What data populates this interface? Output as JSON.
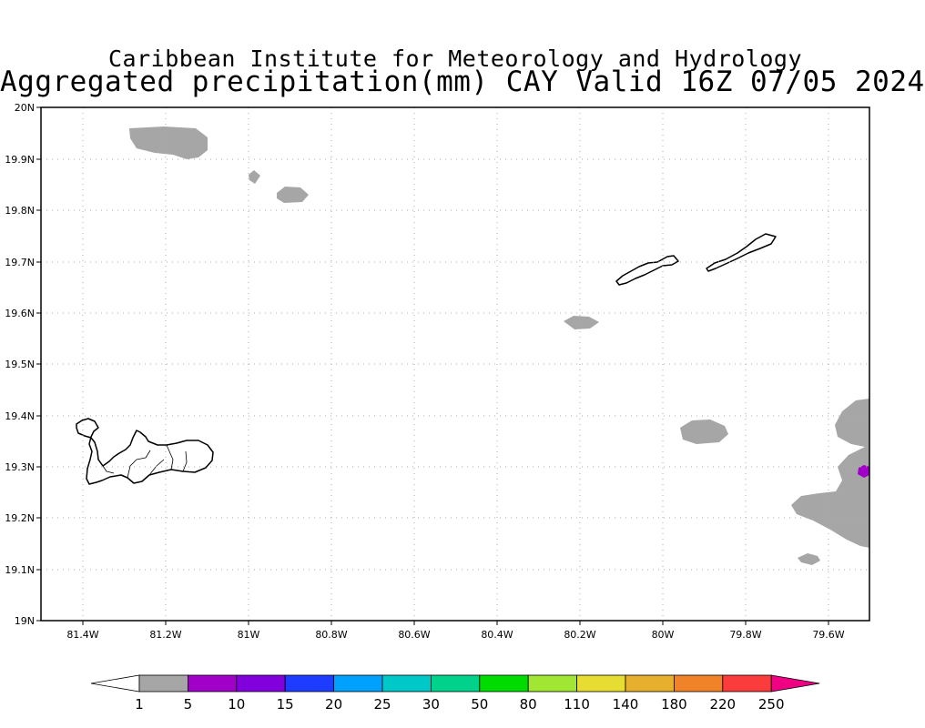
{
  "title": {
    "line1": "Caribbean Institute for Meteorology and Hydrology",
    "line2": "Aggregated precipitation(mm) CAY Valid 16Z 07/05 2024"
  },
  "map": {
    "lat_labels": [
      "20N",
      "19.9N",
      "19.8N",
      "19.7N",
      "19.6N",
      "19.5N",
      "19.4N",
      "19.3N",
      "19.2N",
      "19.1N",
      "19N"
    ],
    "lon_labels": [
      "81.4W",
      "81.2W",
      "81W",
      "80.8W",
      "80.6W",
      "80.4W",
      "80.2W",
      "80W",
      "79.8W",
      "79.6W"
    ],
    "grid": true,
    "land_color": "#000000",
    "precip_regions": [
      {
        "area": "north of Grand Cayman",
        "category": "1-5",
        "color": "#a6a6a6"
      },
      {
        "area": "small cell near 81.0W 19.87N",
        "category": "1-5",
        "color": "#a6a6a6"
      },
      {
        "area": "cell near 80.9W 19.83N",
        "category": "1-5",
        "color": "#a6a6a6"
      },
      {
        "area": "cell near 80.2W 19.58N",
        "category": "1-5",
        "color": "#a6a6a6"
      },
      {
        "area": "cell near 79.9W 19.37N",
        "category": "1-5",
        "color": "#a6a6a6"
      },
      {
        "area": "east edge band 19.2N-19.4N",
        "category": "1-5",
        "color": "#a6a6a6"
      },
      {
        "area": "small cell near 79.64W 19.12N",
        "category": "1-5",
        "color": "#a6a6a6"
      },
      {
        "area": "spot near 79.52W 19.29N",
        "category": "5-10",
        "color": "#a000c8"
      }
    ]
  },
  "colorbar": {
    "labels": [
      "1",
      "5",
      "10",
      "15",
      "20",
      "25",
      "30",
      "50",
      "80",
      "110",
      "140",
      "180",
      "220",
      "250"
    ],
    "colors": [
      "#a6a6a6",
      "#a000c8",
      "#8200dc",
      "#1e3cff",
      "#00a0ff",
      "#00c8c8",
      "#00d28c",
      "#00dc00",
      "#a0e632",
      "#e6dc32",
      "#e6af2d",
      "#f08228",
      "#fa3c3c",
      "#f00082"
    ],
    "under_color": "#ffffff",
    "over_color": "#f00082"
  }
}
